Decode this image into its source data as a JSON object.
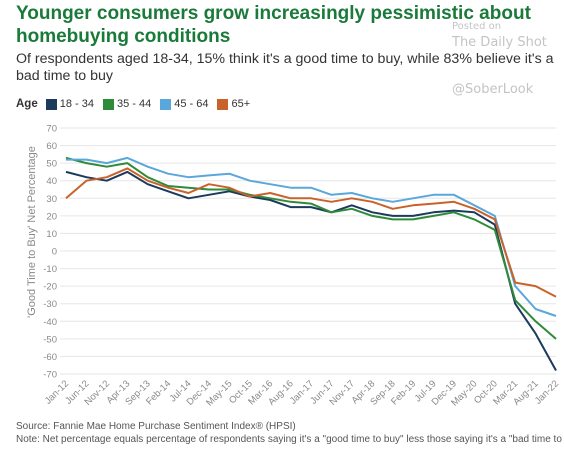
{
  "header": {
    "title": "Younger consumers grow increasingly pessimistic about homebuying conditions",
    "subtitle": "Of respondents aged 18-34, 15% think it's a good time to buy, while 83% believe it's a bad time to buy"
  },
  "watermark": {
    "posted": "Posted on",
    "name": "The Daily Shot",
    "handle": "@SoberLook"
  },
  "legend": {
    "title": "Age",
    "items": [
      {
        "label": "18 - 34",
        "color": "#1b3a5c"
      },
      {
        "label": "35 - 44",
        "color": "#2e8b3a"
      },
      {
        "label": "45 - 64",
        "color": "#5aa7db"
      },
      {
        "label": "65+",
        "color": "#c9622a"
      }
    ]
  },
  "footer": {
    "source": "Source: Fannie Mae Home Purchase Sentiment Index® (HPSI)",
    "note": "Note: Net percentage equals percentage of respondents saying it's a \"good time to buy\" less those saying it's a \"bad time to buy\""
  },
  "chart_data": {
    "type": "line",
    "title": "Younger consumers grow increasingly pessimistic about homebuying conditions",
    "ylabel": "'Good Time to Buy' Net Percentage",
    "xlabel": "",
    "ylim": [
      -70,
      70
    ],
    "yticks": [
      70,
      60,
      50,
      40,
      30,
      20,
      10,
      0,
      -10,
      -20,
      -30,
      -40,
      -50,
      -60,
      -70
    ],
    "x_tick_labels": [
      "Jan-12",
      "Jun-12",
      "Nov-12",
      "Apr-13",
      "Sep-13",
      "Feb-14",
      "Jul-14",
      "Dec-14",
      "May-15",
      "Oct-15",
      "Mar-16",
      "Aug-16",
      "Jan-17",
      "Jun-17",
      "Nov-17",
      "Apr-18",
      "Sep-18",
      "Feb-19",
      "Jul-19",
      "Dec-19",
      "May-20",
      "Oct-20",
      "Mar-21",
      "Aug-21",
      "Jan-22"
    ],
    "grid": true,
    "legend_position": "top-left",
    "series": [
      {
        "name": "18 - 34",
        "color": "#1b3a5c",
        "values": [
          {
            "x": "Jan-12",
            "y": 45
          },
          {
            "x": "Jun-12",
            "y": 42
          },
          {
            "x": "Nov-12",
            "y": 40
          },
          {
            "x": "Apr-13",
            "y": 45
          },
          {
            "x": "Sep-13",
            "y": 38
          },
          {
            "x": "Feb-14",
            "y": 34
          },
          {
            "x": "Jul-14",
            "y": 30
          },
          {
            "x": "Dec-14",
            "y": 32
          },
          {
            "x": "May-15",
            "y": 34
          },
          {
            "x": "Oct-15",
            "y": 31
          },
          {
            "x": "Mar-16",
            "y": 29
          },
          {
            "x": "Aug-16",
            "y": 25
          },
          {
            "x": "Jan-17",
            "y": 25
          },
          {
            "x": "Jun-17",
            "y": 22
          },
          {
            "x": "Nov-17",
            "y": 26
          },
          {
            "x": "Apr-18",
            "y": 22
          },
          {
            "x": "Sep-18",
            "y": 20
          },
          {
            "x": "Feb-19",
            "y": 20
          },
          {
            "x": "Jul-19",
            "y": 22
          },
          {
            "x": "Dec-19",
            "y": 23
          },
          {
            "x": "May-20",
            "y": 22
          },
          {
            "x": "Oct-20",
            "y": 15
          },
          {
            "x": "Mar-21",
            "y": -30
          },
          {
            "x": "Aug-21",
            "y": -47
          },
          {
            "x": "Jan-22",
            "y": -68
          }
        ]
      },
      {
        "name": "35 - 44",
        "color": "#2e8b3a",
        "values": [
          {
            "x": "Jan-12",
            "y": 53
          },
          {
            "x": "Jun-12",
            "y": 50
          },
          {
            "x": "Nov-12",
            "y": 48
          },
          {
            "x": "Apr-13",
            "y": 50
          },
          {
            "x": "Sep-13",
            "y": 42
          },
          {
            "x": "Feb-14",
            "y": 37
          },
          {
            "x": "Jul-14",
            "y": 36
          },
          {
            "x": "Dec-14",
            "y": 35
          },
          {
            "x": "May-15",
            "y": 35
          },
          {
            "x": "Oct-15",
            "y": 32
          },
          {
            "x": "Mar-16",
            "y": 30
          },
          {
            "x": "Aug-16",
            "y": 28
          },
          {
            "x": "Jan-17",
            "y": 27
          },
          {
            "x": "Jun-17",
            "y": 22
          },
          {
            "x": "Nov-17",
            "y": 24
          },
          {
            "x": "Apr-18",
            "y": 20
          },
          {
            "x": "Sep-18",
            "y": 18
          },
          {
            "x": "Feb-19",
            "y": 18
          },
          {
            "x": "Jul-19",
            "y": 20
          },
          {
            "x": "Dec-19",
            "y": 22
          },
          {
            "x": "May-20",
            "y": 18
          },
          {
            "x": "Oct-20",
            "y": 12
          },
          {
            "x": "Mar-21",
            "y": -28
          },
          {
            "x": "Aug-21",
            "y": -40
          },
          {
            "x": "Jan-22",
            "y": -50
          }
        ]
      },
      {
        "name": "45 - 64",
        "color": "#5aa7db",
        "values": [
          {
            "x": "Jan-12",
            "y": 52
          },
          {
            "x": "Jun-12",
            "y": 52
          },
          {
            "x": "Nov-12",
            "y": 50
          },
          {
            "x": "Apr-13",
            "y": 53
          },
          {
            "x": "Sep-13",
            "y": 48
          },
          {
            "x": "Feb-14",
            "y": 44
          },
          {
            "x": "Jul-14",
            "y": 42
          },
          {
            "x": "Dec-14",
            "y": 43
          },
          {
            "x": "May-15",
            "y": 44
          },
          {
            "x": "Oct-15",
            "y": 40
          },
          {
            "x": "Mar-16",
            "y": 38
          },
          {
            "x": "Aug-16",
            "y": 36
          },
          {
            "x": "Jan-17",
            "y": 36
          },
          {
            "x": "Jun-17",
            "y": 32
          },
          {
            "x": "Nov-17",
            "y": 33
          },
          {
            "x": "Apr-18",
            "y": 30
          },
          {
            "x": "Sep-18",
            "y": 28
          },
          {
            "x": "Feb-19",
            "y": 30
          },
          {
            "x": "Jul-19",
            "y": 32
          },
          {
            "x": "Dec-19",
            "y": 32
          },
          {
            "x": "May-20",
            "y": 26
          },
          {
            "x": "Oct-20",
            "y": 20
          },
          {
            "x": "Mar-21",
            "y": -20
          },
          {
            "x": "Aug-21",
            "y": -33
          },
          {
            "x": "Jan-22",
            "y": -37
          }
        ]
      },
      {
        "name": "65+",
        "color": "#c9622a",
        "values": [
          {
            "x": "Jan-12",
            "y": 30
          },
          {
            "x": "Jun-12",
            "y": 40
          },
          {
            "x": "Nov-12",
            "y": 42
          },
          {
            "x": "Apr-13",
            "y": 47
          },
          {
            "x": "Sep-13",
            "y": 40
          },
          {
            "x": "Feb-14",
            "y": 36
          },
          {
            "x": "Jul-14",
            "y": 33
          },
          {
            "x": "Dec-14",
            "y": 38
          },
          {
            "x": "May-15",
            "y": 36
          },
          {
            "x": "Oct-15",
            "y": 31
          },
          {
            "x": "Mar-16",
            "y": 33
          },
          {
            "x": "Aug-16",
            "y": 30
          },
          {
            "x": "Jan-17",
            "y": 30
          },
          {
            "x": "Jun-17",
            "y": 28
          },
          {
            "x": "Nov-17",
            "y": 30
          },
          {
            "x": "Apr-18",
            "y": 28
          },
          {
            "x": "Sep-18",
            "y": 24
          },
          {
            "x": "Feb-19",
            "y": 26
          },
          {
            "x": "Jul-19",
            "y": 27
          },
          {
            "x": "Dec-19",
            "y": 28
          },
          {
            "x": "May-20",
            "y": 24
          },
          {
            "x": "Oct-20",
            "y": 18
          },
          {
            "x": "Mar-21",
            "y": -18
          },
          {
            "x": "Aug-21",
            "y": -20
          },
          {
            "x": "Jan-22",
            "y": -26
          }
        ]
      }
    ]
  }
}
